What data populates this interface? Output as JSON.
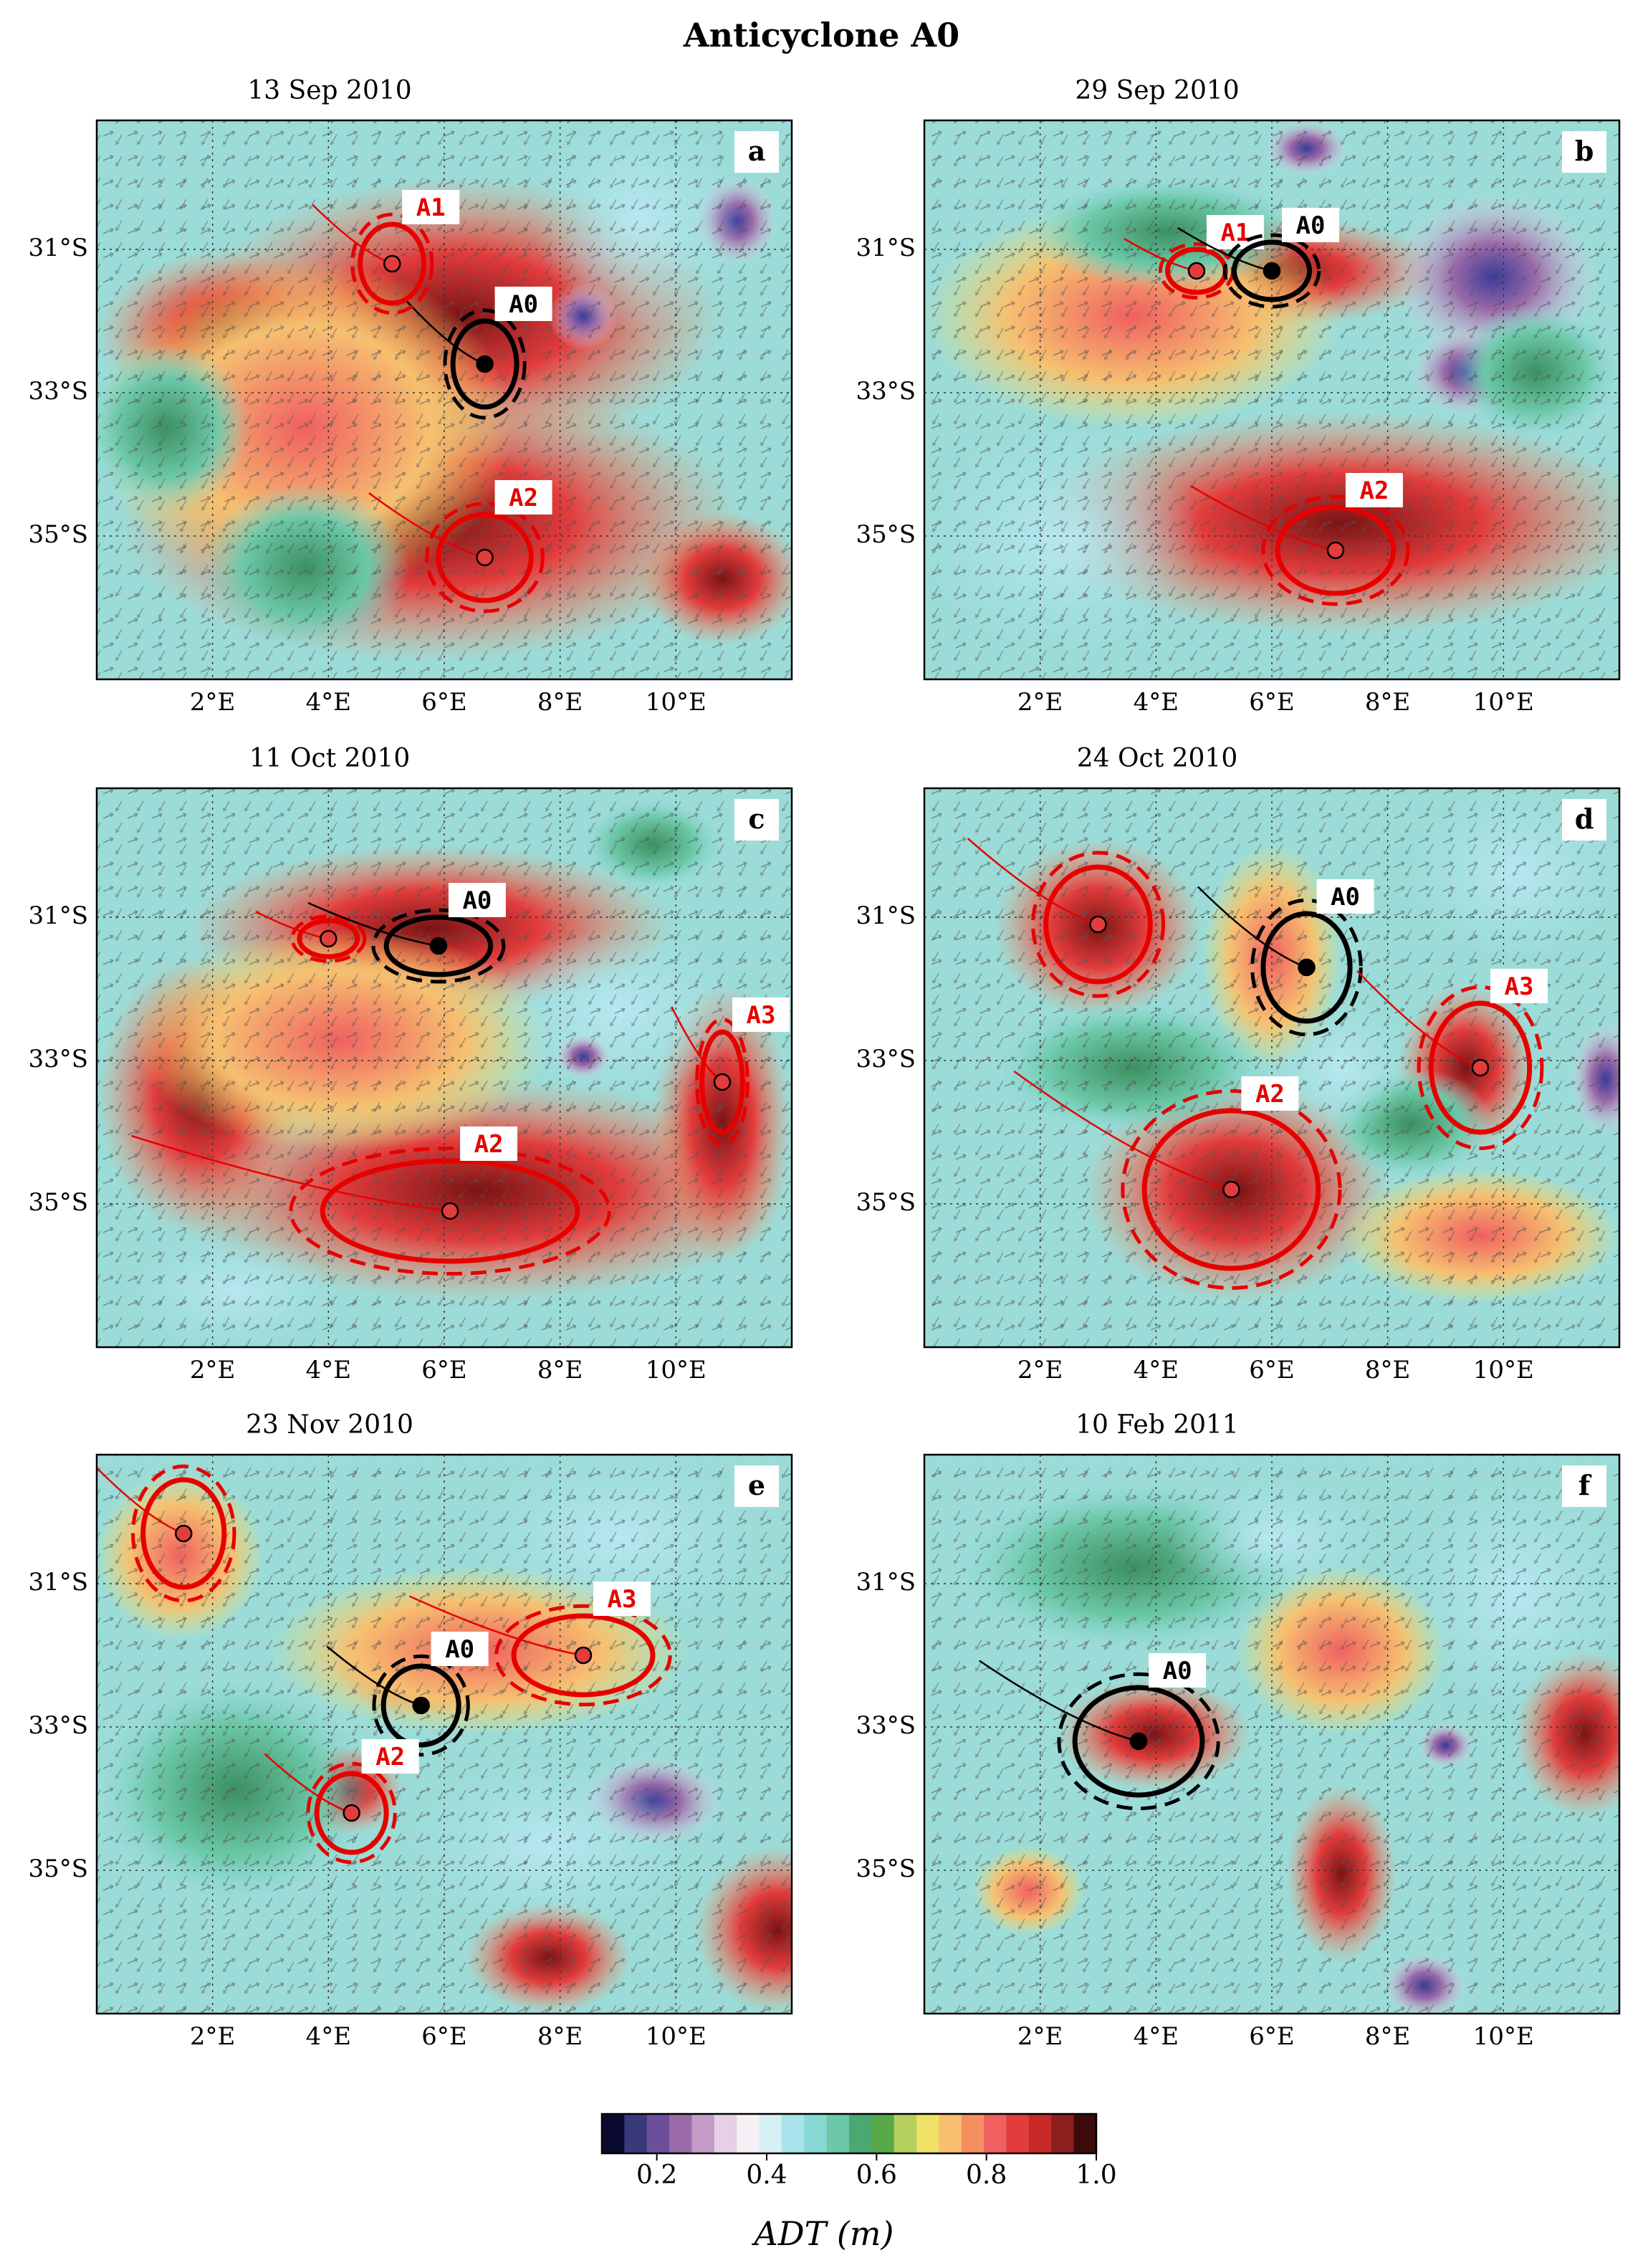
{
  "figure_title": "Anticyclone A0",
  "panels": [
    {
      "id": "a",
      "date": "13 Sep 2010",
      "eddies": [
        {
          "label": "A0",
          "color": "#000000",
          "lon": 6.7,
          "lat": -32.6,
          "rx": 0.55,
          "ry": 0.6
        },
        {
          "label": "A1",
          "color": "#e60000",
          "lon": 5.1,
          "lat": -31.2,
          "rx": 0.55,
          "ry": 0.55
        },
        {
          "label": "A2",
          "color": "#e60000",
          "lon": 6.7,
          "lat": -35.3,
          "rx": 0.8,
          "ry": 0.6
        }
      ]
    },
    {
      "id": "b",
      "date": "29 Sep 2010",
      "eddies": [
        {
          "label": "A1",
          "color": "#e60000",
          "lon": 4.7,
          "lat": -31.3,
          "rx": 0.5,
          "ry": 0.3
        },
        {
          "label": "A0",
          "color": "#000000",
          "lon": 6.0,
          "lat": -31.3,
          "rx": 0.65,
          "ry": 0.4
        },
        {
          "label": "A2",
          "color": "#e60000",
          "lon": 7.1,
          "lat": -35.2,
          "rx": 1.0,
          "ry": 0.6
        }
      ]
    },
    {
      "id": "c",
      "date": "11 Oct 2010",
      "eddies": [
        {
          "label": "",
          "color": "#e60000",
          "lon": 4.0,
          "lat": -31.3,
          "rx": 0.5,
          "ry": 0.25
        },
        {
          "label": "A0",
          "color": "#000000",
          "lon": 5.9,
          "lat": -31.4,
          "rx": 0.9,
          "ry": 0.4
        },
        {
          "label": "A3",
          "color": "#e60000",
          "lon": 10.8,
          "lat": -33.3,
          "rx": 0.35,
          "ry": 0.7
        },
        {
          "label": "A2",
          "color": "#e60000",
          "lon": 6.1,
          "lat": -35.1,
          "rx": 2.2,
          "ry": 0.7
        }
      ]
    },
    {
      "id": "d",
      "date": "24 Oct 2010",
      "eddies": [
        {
          "label": "",
          "color": "#e60000",
          "lon": 3.0,
          "lat": -31.1,
          "rx": 0.9,
          "ry": 0.8
        },
        {
          "label": "A0",
          "color": "#000000",
          "lon": 6.6,
          "lat": -31.7,
          "rx": 0.75,
          "ry": 0.75
        },
        {
          "label": "A3",
          "color": "#e60000",
          "lon": 9.6,
          "lat": -33.1,
          "rx": 0.85,
          "ry": 0.9
        },
        {
          "label": "A2",
          "color": "#e60000",
          "lon": 5.3,
          "lat": -34.8,
          "rx": 1.5,
          "ry": 1.1
        }
      ]
    },
    {
      "id": "e",
      "date": "23 Nov 2010",
      "eddies": [
        {
          "label": "",
          "color": "#e60000",
          "lon": 1.5,
          "lat": -30.3,
          "rx": 0.7,
          "ry": 0.75
        },
        {
          "label": "A0",
          "color": "#000000",
          "lon": 5.6,
          "lat": -32.7,
          "rx": 0.65,
          "ry": 0.55
        },
        {
          "label": "A3",
          "color": "#e60000",
          "lon": 8.4,
          "lat": -32.0,
          "rx": 1.2,
          "ry": 0.55
        },
        {
          "label": "A2",
          "color": "#e60000",
          "lon": 4.4,
          "lat": -34.2,
          "rx": 0.6,
          "ry": 0.55
        }
      ]
    },
    {
      "id": "f",
      "date": "10 Feb 2011",
      "eddies": [
        {
          "label": "A0",
          "color": "#000000",
          "lon": 3.7,
          "lat": -33.2,
          "rx": 1.1,
          "ry": 0.75
        }
      ]
    }
  ],
  "axes": {
    "lat_ticks": [
      "31°S",
      "33°S",
      "35°S"
    ],
    "lat_values": [
      -31,
      -33,
      -35
    ],
    "lon_ticks": [
      "2°E",
      "4°E",
      "6°E",
      "8°E",
      "10°E"
    ],
    "lon_values": [
      2,
      4,
      6,
      8,
      10
    ],
    "lon_range": [
      0,
      12
    ],
    "lat_range": [
      -37,
      -29.2
    ]
  },
  "colorbar": {
    "label": "ADT (m)",
    "ticks": [
      "0.2",
      "0.4",
      "0.6",
      "0.8",
      "1.0"
    ],
    "tick_values": [
      0.2,
      0.4,
      0.6,
      0.8,
      1.0
    ],
    "range": [
      0.1,
      1.0
    ],
    "colors": [
      "#0a0a30",
      "#3a3a7a",
      "#6b4f9a",
      "#9a6aa8",
      "#c49ac6",
      "#e6d0e6",
      "#f4f0f4",
      "#d6f0f4",
      "#a8e2ea",
      "#88d8d4",
      "#6cc8a8",
      "#4aa870",
      "#58a848",
      "#b6d060",
      "#f0e068",
      "#f6c070",
      "#f49060",
      "#f06060",
      "#e23c3c",
      "#c82828",
      "#8c1e1e",
      "#3c0a0a"
    ]
  },
  "colors": {
    "anticyclone_red": "#e60000",
    "tracked_black": "#000000",
    "genesis_marker": "#dd00dd"
  }
}
